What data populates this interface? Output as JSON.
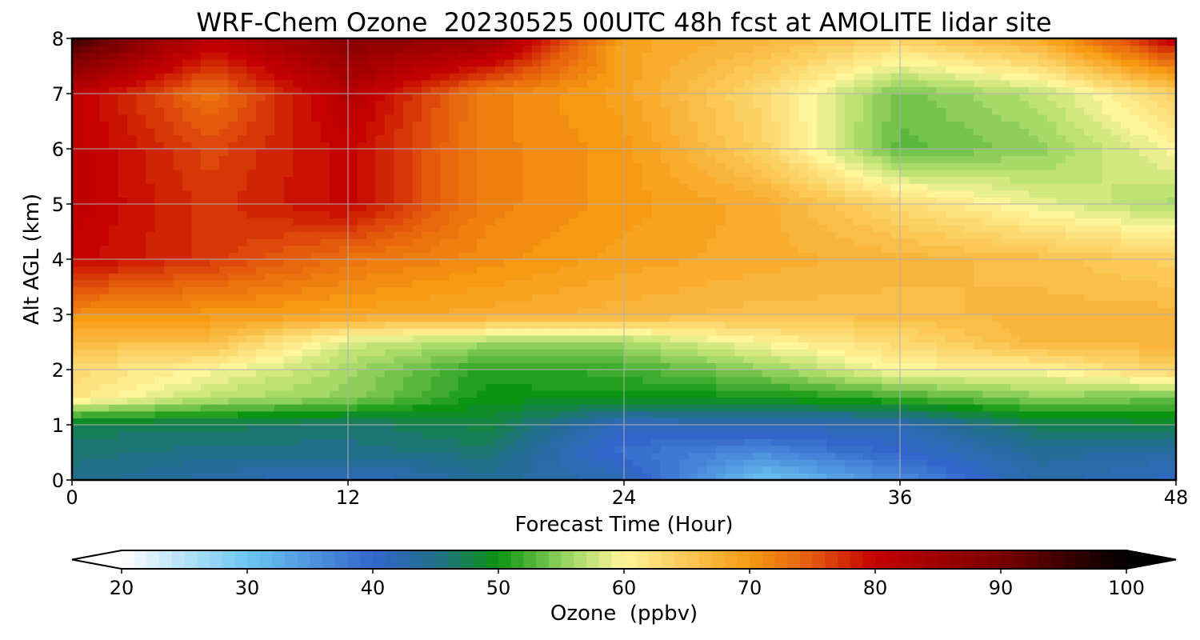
{
  "chart_data": {
    "type": "heatmap",
    "title": "WRF-Chem Ozone  20230525 00UTC 48h fcst at AMOLITE lidar site",
    "xlabel": "Forecast Time (Hour)",
    "ylabel": "Alt AGL (km)",
    "xlim": [
      0,
      48
    ],
    "ylim": [
      0,
      8
    ],
    "xticks": [
      0,
      12,
      24,
      36,
      48
    ],
    "yticks": [
      0,
      1,
      2,
      3,
      4,
      5,
      6,
      7,
      8
    ],
    "grid": true,
    "x": [
      0,
      6,
      12,
      18,
      24,
      30,
      36,
      42,
      48
    ],
    "y": [
      0,
      0.5,
      1,
      1.5,
      2,
      2.5,
      3,
      4,
      5,
      6,
      7,
      8
    ],
    "z": [
      [
        45,
        43,
        41,
        44,
        42,
        30,
        36,
        43,
        41
      ],
      [
        46,
        45,
        45,
        46,
        39,
        36,
        40,
        44,
        43
      ],
      [
        47,
        47,
        46,
        48,
        41,
        42,
        42,
        47,
        48
      ],
      [
        62,
        57,
        55,
        50,
        50,
        50,
        52,
        55,
        54
      ],
      [
        63,
        60,
        56,
        51,
        52,
        55,
        60,
        60,
        64
      ],
      [
        66,
        66,
        58,
        56,
        56,
        60,
        63,
        67,
        67
      ],
      [
        71,
        70,
        69,
        68,
        67,
        66,
        66,
        67,
        67
      ],
      [
        80,
        77,
        73,
        71,
        69,
        68,
        67,
        66,
        64
      ],
      [
        81,
        77,
        80,
        72,
        70,
        68,
        63,
        59,
        56
      ],
      [
        81,
        76,
        80,
        72,
        70,
        64,
        53,
        55,
        60
      ],
      [
        81,
        73,
        82,
        72,
        69,
        63,
        54,
        57,
        64
      ],
      [
        95,
        81,
        88,
        86,
        69,
        67,
        64,
        68,
        81
      ]
    ],
    "colorbar": {
      "label": "Ozone  (ppbv)",
      "min": 20,
      "max": 100,
      "extend": "both",
      "ticks": [
        20,
        30,
        40,
        50,
        60,
        70,
        80,
        90,
        100
      ],
      "stops": [
        {
          "v": 20,
          "c": "#ffffff"
        },
        {
          "v": 30,
          "c": "#6cc6f2"
        },
        {
          "v": 40,
          "c": "#3366cc"
        },
        {
          "v": 45,
          "c": "#226f8c"
        },
        {
          "v": 50,
          "c": "#0a9410"
        },
        {
          "v": 56,
          "c": "#a8da6a"
        },
        {
          "v": 60,
          "c": "#fff59a"
        },
        {
          "v": 70,
          "c": "#f79a12"
        },
        {
          "v": 75,
          "c": "#e45a0c"
        },
        {
          "v": 80,
          "c": "#c40000"
        },
        {
          "v": 90,
          "c": "#7a0000"
        },
        {
          "v": 100,
          "c": "#000000"
        }
      ]
    }
  }
}
